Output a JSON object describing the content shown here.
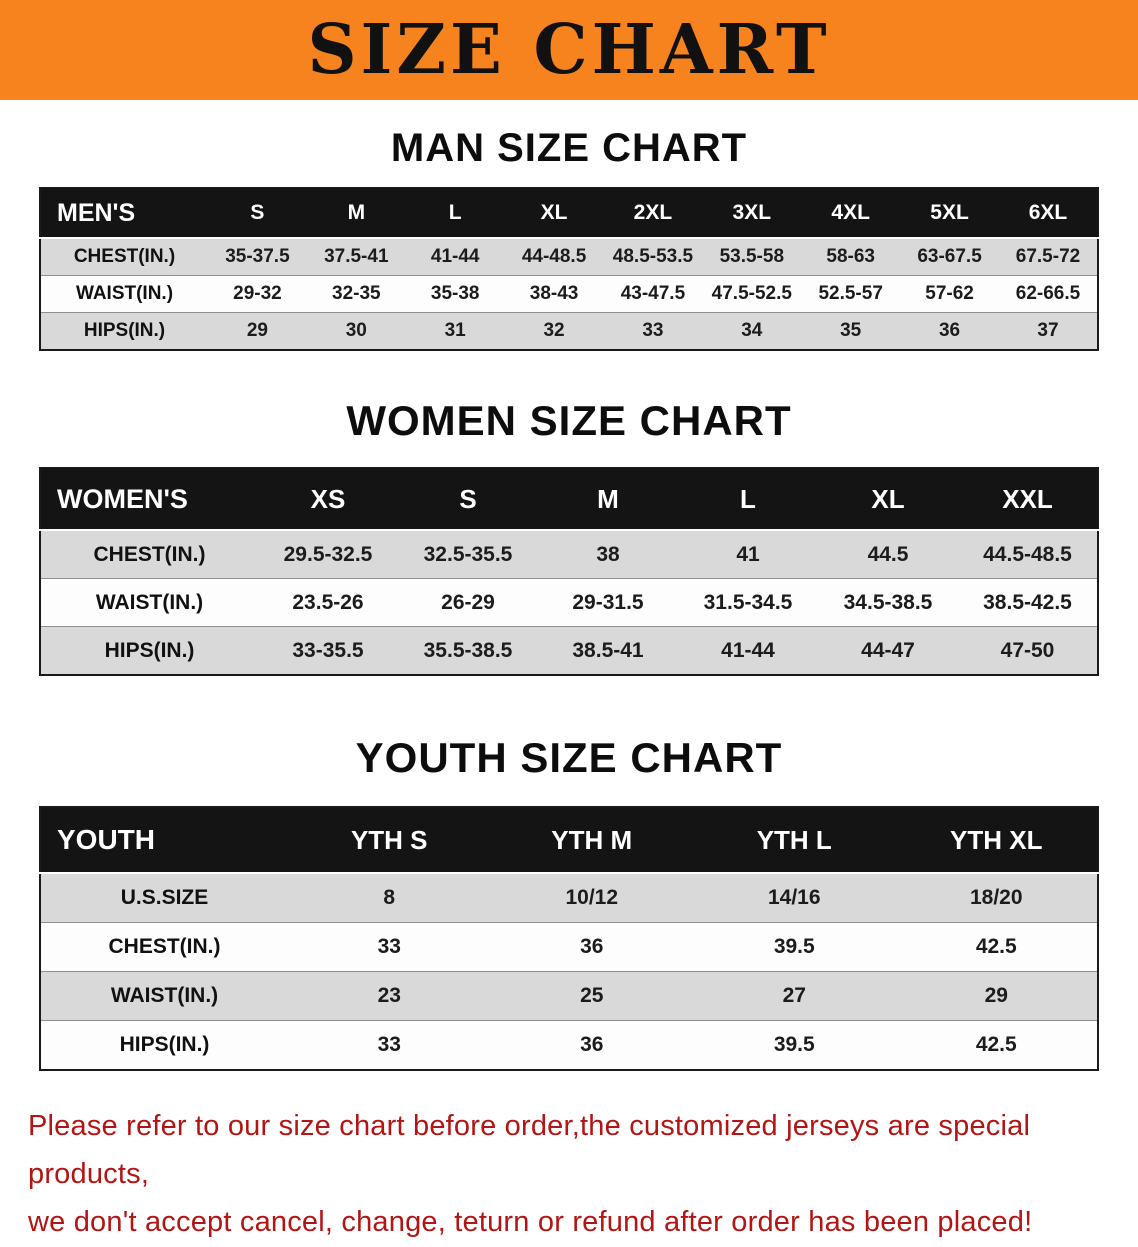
{
  "banner": {
    "title": "SIZE CHART",
    "background_color": "#f6831e",
    "text_color": "#111111"
  },
  "colors": {
    "table_header_bg": "#141414",
    "table_header_text": "#ffffff",
    "row_shaded": "#d9d9d9",
    "row_plain": "#fdfdfd",
    "disclaimer_text": "#b31515"
  },
  "sections": [
    {
      "heading": "MAN SIZE CHART",
      "table": {
        "header": [
          "MEN'S",
          "S",
          "M",
          "L",
          "XL",
          "2XL",
          "3XL",
          "4XL",
          "5XL",
          "6XL"
        ],
        "rows": [
          [
            "CHEST(IN.)",
            "35-37.5",
            "37.5-41",
            "41-44",
            "44-48.5",
            "48.5-53.5",
            "53.5-58",
            "58-63",
            "63-67.5",
            "67.5-72"
          ],
          [
            "WAIST(IN.)",
            "29-32",
            "32-35",
            "35-38",
            "38-43",
            "43-47.5",
            "47.5-52.5",
            "52.5-57",
            "57-62",
            "62-66.5"
          ],
          [
            "HIPS(IN.)",
            "29",
            "30",
            "31",
            "32",
            "33",
            "34",
            "35",
            "36",
            "37"
          ]
        ]
      }
    },
    {
      "heading": "WOMEN SIZE CHART",
      "table": {
        "header": [
          "WOMEN'S",
          "XS",
          "S",
          "M",
          "L",
          "XL",
          "XXL"
        ],
        "rows": [
          [
            "CHEST(IN.)",
            "29.5-32.5",
            "32.5-35.5",
            "38",
            "41",
            "44.5",
            "44.5-48.5"
          ],
          [
            "WAIST(IN.)",
            "23.5-26",
            "26-29",
            "29-31.5",
            "31.5-34.5",
            "34.5-38.5",
            "38.5-42.5"
          ],
          [
            "HIPS(IN.)",
            "33-35.5",
            "35.5-38.5",
            "38.5-41",
            "41-44",
            "44-47",
            "47-50"
          ]
        ]
      }
    },
    {
      "heading": "YOUTH SIZE CHART",
      "table": {
        "header": [
          "YOUTH",
          "YTH S",
          "YTH M",
          "YTH L",
          "YTH XL"
        ],
        "rows": [
          [
            "U.S.SIZE",
            "8",
            "10/12",
            "14/16",
            "18/20"
          ],
          [
            "CHEST(IN.)",
            "33",
            "36",
            "39.5",
            "42.5"
          ],
          [
            "WAIST(IN.)",
            "23",
            "25",
            "27",
            "29"
          ],
          [
            "HIPS(IN.)",
            "33",
            "36",
            "39.5",
            "42.5"
          ]
        ]
      }
    }
  ],
  "disclaimer": {
    "line1": "Please refer to our size chart before order,the customized jerseys are special products,",
    "line2": "we don't accept cancel, change, teturn or refund after order has been placed!"
  }
}
